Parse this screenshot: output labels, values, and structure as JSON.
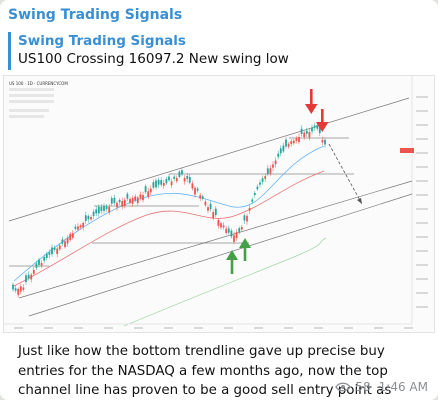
{
  "channel": {
    "name": "Swing Trading Signals"
  },
  "reply": {
    "title": "Swing Trading Signals",
    "text": "US100 Crossing 16097.2 New swing low"
  },
  "message": {
    "text": "Just like how the bottom trendline gave up precise buy entries for the NASDAQ a few months ago, now the top channel line has proven to be a good sell entry point as well.",
    "views": "58",
    "time": "1:46 AM",
    "views_icon": "eye-icon"
  },
  "chart_image": {
    "symbol_header": "US 100 · 1D · CURRENCYCOM",
    "down_arrow_color": "#e53935",
    "up_arrow_color": "#43a047",
    "candle_up_color": "#26a69a",
    "candle_down_color": "#ef5350"
  }
}
